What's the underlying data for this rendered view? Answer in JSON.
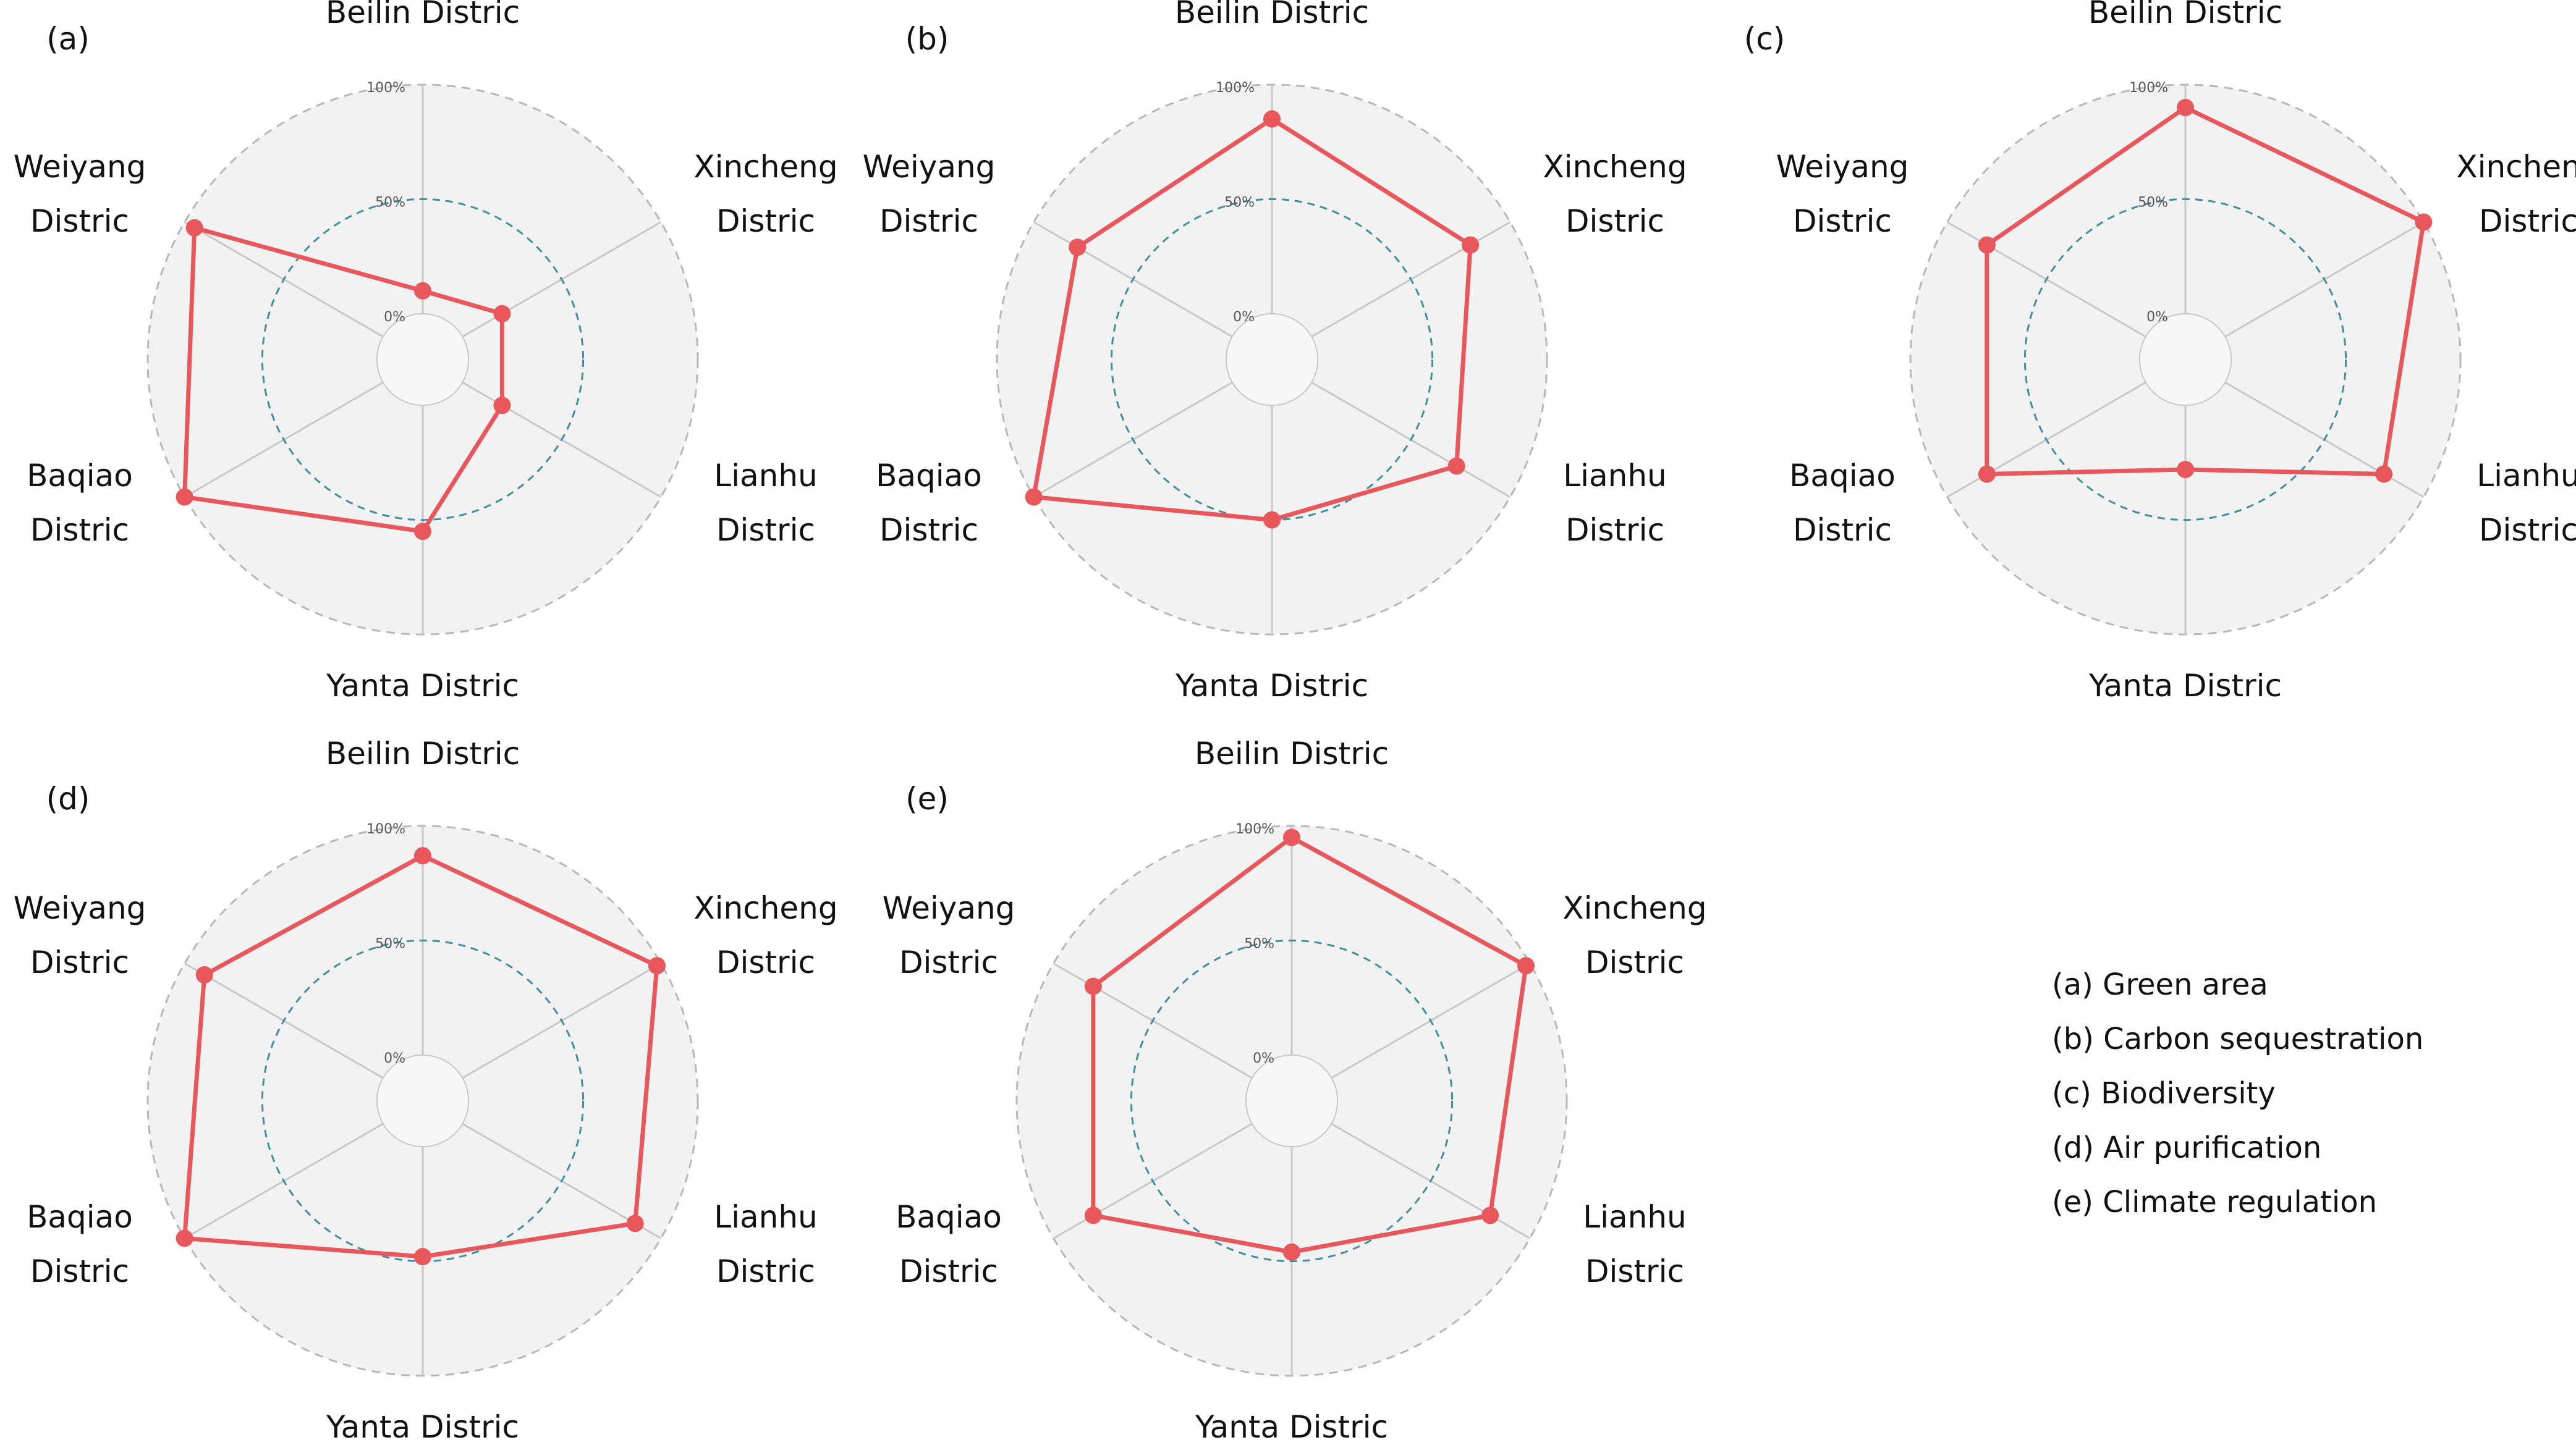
{
  "chart_data": [
    {
      "type": "radar",
      "panel_label": "(a)",
      "categories": [
        "Beilin Distric",
        "Xincheng Distric",
        "Lianhu Distric",
        "Yanta Distric",
        "Baqiao Distric",
        "Weiyang Distric"
      ],
      "series": [
        {
          "values": [
            10,
            20,
            20,
            55,
            100,
            95
          ]
        }
      ],
      "rlim": [
        -20,
        100
      ],
      "rings": [
        {
          "value": 0,
          "label": "0%"
        },
        {
          "value": 50,
          "label": "50%"
        },
        {
          "value": 100,
          "label": "100%"
        }
      ]
    },
    {
      "type": "radar",
      "panel_label": "(b)",
      "categories": [
        "Beilin Distric",
        "Xincheng Distric",
        "Lianhu Distric",
        "Yanta Distric",
        "Baqiao Distric",
        "Weiyang Distric"
      ],
      "series": [
        {
          "values": [
            85,
            80,
            73,
            50,
            100,
            78
          ]
        }
      ],
      "rlim": [
        -20,
        100
      ],
      "rings": [
        {
          "value": 0,
          "label": "0%"
        },
        {
          "value": 50,
          "label": "50%"
        },
        {
          "value": 100,
          "label": "100%"
        }
      ]
    },
    {
      "type": "radar",
      "panel_label": "(c)",
      "categories": [
        "Beilin Distric",
        "Xincheng Distric",
        "Lianhu Distric",
        "Yanta Distric",
        "Baqiao Distric",
        "Weiyang Distric"
      ],
      "series": [
        {
          "values": [
            90,
            100,
            80,
            28,
            80,
            80
          ]
        }
      ],
      "rlim": [
        -20,
        100
      ],
      "rings": [
        {
          "value": 0,
          "label": "0%"
        },
        {
          "value": 50,
          "label": "50%"
        },
        {
          "value": 100,
          "label": "100%"
        }
      ]
    },
    {
      "type": "radar",
      "panel_label": "(d)",
      "categories": [
        "Beilin Distric",
        "Xincheng Distric",
        "Lianhu Distric",
        "Yanta Distric",
        "Baqiao Distric",
        "Weiyang Distric"
      ],
      "series": [
        {
          "values": [
            87,
            98,
            87,
            48,
            100,
            90
          ]
        }
      ],
      "rlim": [
        -20,
        100
      ],
      "rings": [
        {
          "value": 0,
          "label": "0%"
        },
        {
          "value": 50,
          "label": "50%"
        },
        {
          "value": 100,
          "label": "100%"
        }
      ]
    },
    {
      "type": "radar",
      "panel_label": "(e)",
      "categories": [
        "Beilin Distric",
        "Xincheng Distric",
        "Lianhu Distric",
        "Yanta Distric",
        "Baqiao Distric",
        "Weiyang Distric"
      ],
      "series": [
        {
          "values": [
            95,
            98,
            80,
            46,
            80,
            80
          ]
        }
      ],
      "rlim": [
        -20,
        100
      ],
      "rings": [
        {
          "value": 0,
          "label": "0%"
        },
        {
          "value": 50,
          "label": "50%"
        },
        {
          "value": 100,
          "label": "100%"
        }
      ]
    }
  ],
  "legend": {
    "items": [
      "(a) Green area",
      "(b) Carbon sequestration",
      "(c) Biodiversity",
      "(d) Air purification",
      "(e) Climate regulation"
    ]
  },
  "colors": {
    "series": "#e8575b",
    "disc": "#f2f2f2",
    "disc_edge": "#b8b8b8",
    "midring": "#3f8fa0",
    "spoke": "#c8c8c8"
  }
}
